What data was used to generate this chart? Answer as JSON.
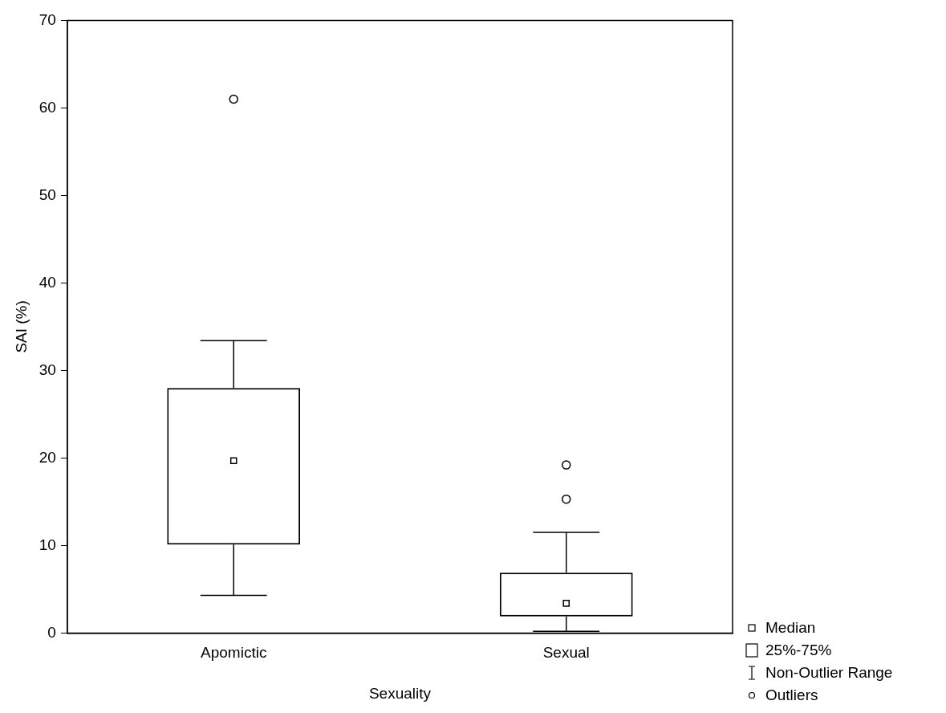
{
  "chart_data": {
    "type": "box",
    "categories": [
      "Apomictic",
      "Sexual"
    ],
    "boxes": [
      {
        "low": 4.3,
        "q1": 10.1,
        "median": 19.7,
        "q3": 28.0,
        "high": 33.4,
        "outliers": [
          61
        ]
      },
      {
        "low": 0.2,
        "q1": 1.9,
        "median": 3.4,
        "q3": 6.9,
        "high": 11.5,
        "outliers": [
          19.2,
          15.3
        ]
      }
    ],
    "xlabel": "Sexuality",
    "ylabel": "SAI (%)",
    "ylim": [
      0,
      70
    ],
    "yticks": [
      0,
      10,
      20,
      30,
      40,
      50,
      60,
      70
    ],
    "annotations": [
      "Median",
      "25%-75%",
      "Non-Outlier Range",
      "Outliers"
    ]
  }
}
